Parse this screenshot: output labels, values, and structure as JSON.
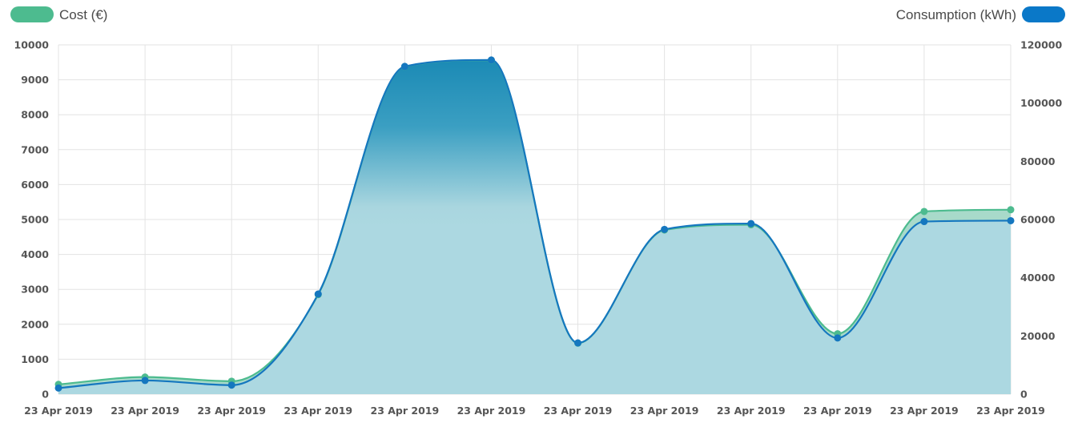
{
  "chart_data": {
    "type": "area",
    "title": "",
    "x": [
      "23 Apr 2019",
      "23 Apr 2019",
      "23 Apr 2019",
      "23 Apr 2019",
      "23 Apr 2019",
      "23 Apr 2019",
      "23 Apr 2019",
      "23 Apr 2019",
      "23 Apr 2019",
      "23 Apr 2019",
      "23 Apr 2019",
      "23 Apr 2019"
    ],
    "series": [
      {
        "name": "Cost (€)",
        "axis": "left",
        "color": "#4dbb8f",
        "values": [
          280,
          490,
          370,
          2850,
          9380,
          9560,
          1460,
          4700,
          4850,
          1730,
          5230,
          5280
        ]
      },
      {
        "name": "Consumption (kWh)",
        "axis": "right",
        "color": "#1b7cc4",
        "values": [
          2100,
          4700,
          3100,
          34400,
          112600,
          114800,
          17600,
          56600,
          58600,
          19300,
          59300,
          59600
        ]
      }
    ],
    "y_left": {
      "min": 0,
      "max": 10000,
      "ticks": [
        0,
        1000,
        2000,
        3000,
        4000,
        5000,
        6000,
        7000,
        8000,
        9000,
        10000
      ]
    },
    "y_right": {
      "min": 0,
      "max": 120000,
      "ticks": [
        0,
        20000,
        40000,
        60000,
        80000,
        100000,
        120000
      ]
    },
    "grid": true,
    "legend": "top-left and top-right"
  }
}
